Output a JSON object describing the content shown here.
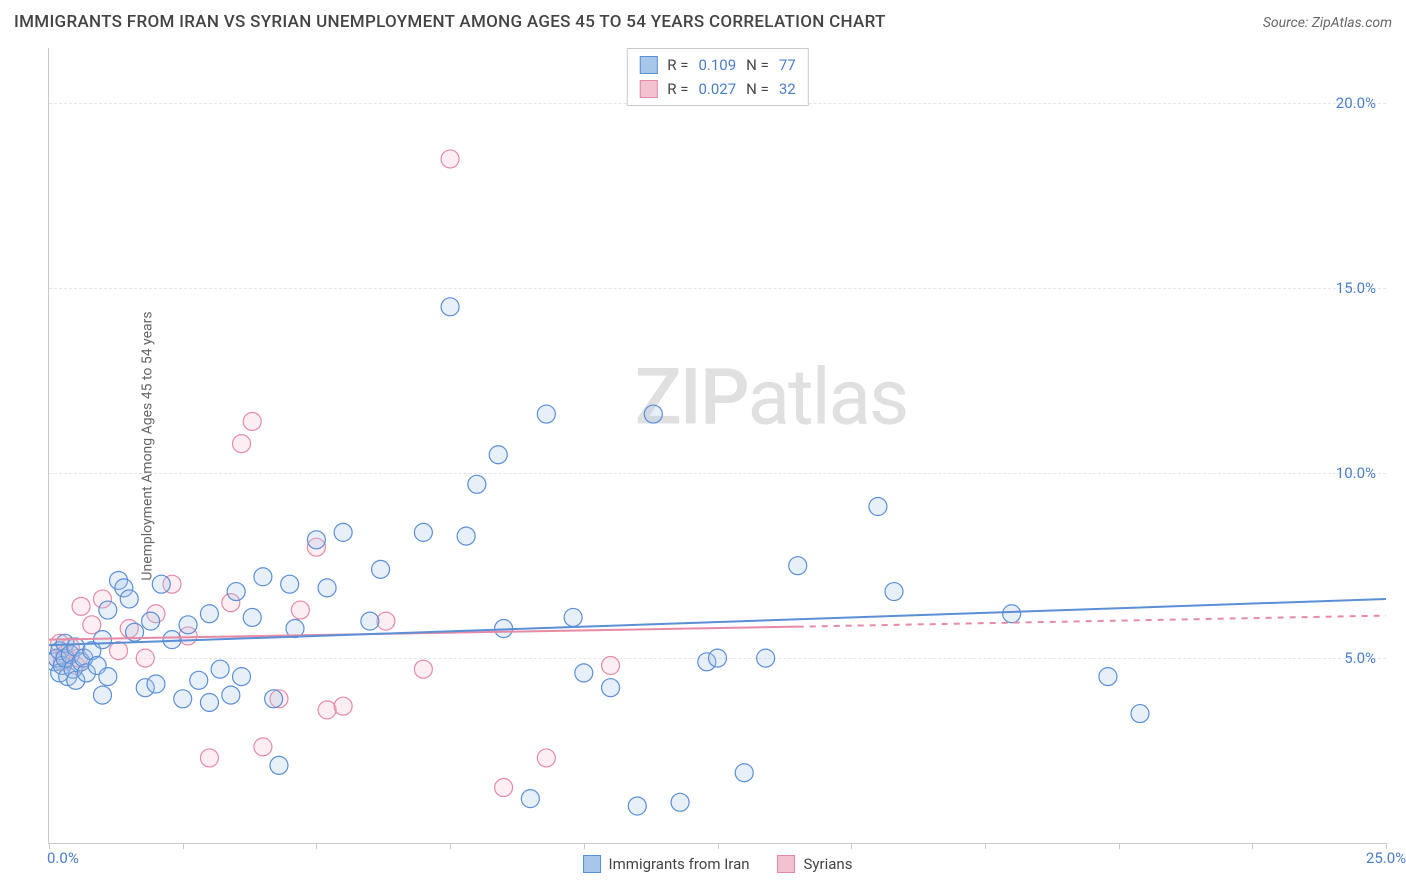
{
  "title": "IMMIGRANTS FROM IRAN VS SYRIAN UNEMPLOYMENT AMONG AGES 45 TO 54 YEARS CORRELATION CHART",
  "source": "Source: ZipAtlas.com",
  "watermark_a": "ZIP",
  "watermark_b": "atlas",
  "chart": {
    "type": "scatter",
    "background_color": "#ffffff",
    "grid_color": "#e6e6e6",
    "axis_color": "#c9c9c9",
    "tick_color": "#4a7ec9",
    "label_color": "#666666",
    "ylabel": "Unemployment Among Ages 45 to 54 years",
    "xlim": [
      0,
      25
    ],
    "ylim": [
      0,
      21.5
    ],
    "x_ticks_major": [
      0,
      5,
      10,
      15,
      20,
      25
    ],
    "x_ticks_minor": [
      2.5,
      7.5,
      12.5,
      17.5,
      22.5
    ],
    "x_tick_labels": {
      "0": "0.0%",
      "25": "25.0%"
    },
    "y_ticks": [
      5,
      10,
      15,
      20
    ],
    "y_tick_labels": {
      "5": "5.0%",
      "10": "10.0%",
      "15": "15.0%",
      "20": "20.0%"
    },
    "marker_radius": 9,
    "marker_stroke_width": 1.2,
    "marker_fill_opacity": 0.28,
    "line_width": 2,
    "series": {
      "iran": {
        "label": "Immigrants from Iran",
        "color_stroke": "#5b8fd6",
        "color_fill": "#a8c6ea",
        "r": "0.109",
        "n": "77",
        "regression": {
          "x0": 0,
          "y0": 5.35,
          "x1": 25,
          "y1": 6.6
        },
        "points": [
          [
            0.1,
            4.9
          ],
          [
            0.15,
            5.0
          ],
          [
            0.2,
            4.6
          ],
          [
            0.2,
            5.2
          ],
          [
            0.25,
            4.8
          ],
          [
            0.3,
            5.0
          ],
          [
            0.3,
            5.4
          ],
          [
            0.35,
            4.5
          ],
          [
            0.4,
            5.1
          ],
          [
            0.45,
            4.7
          ],
          [
            0.5,
            5.3
          ],
          [
            0.5,
            4.4
          ],
          [
            0.6,
            4.9
          ],
          [
            0.65,
            5.0
          ],
          [
            0.7,
            4.6
          ],
          [
            0.8,
            5.2
          ],
          [
            0.9,
            4.8
          ],
          [
            1.0,
            4.0
          ],
          [
            1.0,
            5.5
          ],
          [
            1.1,
            6.3
          ],
          [
            1.1,
            4.5
          ],
          [
            1.3,
            7.1
          ],
          [
            1.4,
            6.9
          ],
          [
            1.5,
            6.6
          ],
          [
            1.6,
            5.7
          ],
          [
            1.8,
            4.2
          ],
          [
            1.9,
            6.0
          ],
          [
            2.0,
            4.3
          ],
          [
            2.1,
            7.0
          ],
          [
            2.3,
            5.5
          ],
          [
            2.5,
            3.9
          ],
          [
            2.6,
            5.9
          ],
          [
            2.8,
            4.4
          ],
          [
            3.0,
            3.8
          ],
          [
            3.0,
            6.2
          ],
          [
            3.2,
            4.7
          ],
          [
            3.4,
            4.0
          ],
          [
            3.5,
            6.8
          ],
          [
            3.6,
            4.5
          ],
          [
            3.8,
            6.1
          ],
          [
            4.0,
            7.2
          ],
          [
            4.2,
            3.9
          ],
          [
            4.3,
            2.1
          ],
          [
            4.5,
            7.0
          ],
          [
            4.6,
            5.8
          ],
          [
            5.0,
            8.2
          ],
          [
            5.2,
            6.9
          ],
          [
            5.5,
            8.4
          ],
          [
            6.0,
            6.0
          ],
          [
            6.2,
            7.4
          ],
          [
            7.0,
            8.4
          ],
          [
            7.5,
            14.5
          ],
          [
            7.8,
            8.3
          ],
          [
            8.0,
            9.7
          ],
          [
            8.4,
            10.5
          ],
          [
            8.5,
            5.8
          ],
          [
            9.0,
            1.2
          ],
          [
            9.3,
            11.6
          ],
          [
            9.8,
            6.1
          ],
          [
            10.0,
            4.6
          ],
          [
            10.5,
            4.2
          ],
          [
            11.0,
            1.0
          ],
          [
            11.3,
            11.6
          ],
          [
            11.8,
            1.1
          ],
          [
            12.3,
            4.9
          ],
          [
            12.5,
            5.0
          ],
          [
            13.0,
            1.9
          ],
          [
            13.4,
            5.0
          ],
          [
            14.0,
            7.5
          ],
          [
            15.5,
            9.1
          ],
          [
            15.8,
            6.8
          ],
          [
            18.0,
            6.2
          ],
          [
            19.8,
            4.5
          ],
          [
            20.4,
            3.5
          ]
        ]
      },
      "syrians": {
        "label": "Syrians",
        "color_stroke": "#e68aa5",
        "color_fill": "#f3c2d0",
        "r": "0.027",
        "n": "32",
        "regression_solid": {
          "x0": 0,
          "y0": 5.5,
          "x1": 14,
          "y1": 5.85
        },
        "regression_dashed": {
          "x0": 14,
          "y0": 5.85,
          "x1": 25,
          "y1": 6.15
        },
        "points": [
          [
            0.15,
            5.0
          ],
          [
            0.2,
            5.4
          ],
          [
            0.25,
            4.9
          ],
          [
            0.3,
            5.1
          ],
          [
            0.4,
            5.3
          ],
          [
            0.5,
            4.8
          ],
          [
            0.55,
            5.0
          ],
          [
            0.6,
            6.4
          ],
          [
            0.8,
            5.9
          ],
          [
            1.0,
            6.6
          ],
          [
            1.3,
            5.2
          ],
          [
            1.5,
            5.8
          ],
          [
            1.8,
            5.0
          ],
          [
            2.0,
            6.2
          ],
          [
            2.3,
            7.0
          ],
          [
            2.6,
            5.6
          ],
          [
            3.0,
            2.3
          ],
          [
            3.4,
            6.5
          ],
          [
            3.6,
            10.8
          ],
          [
            3.8,
            11.4
          ],
          [
            4.0,
            2.6
          ],
          [
            4.3,
            3.9
          ],
          [
            4.7,
            6.3
          ],
          [
            5.0,
            8.0
          ],
          [
            5.2,
            3.6
          ],
          [
            5.5,
            3.7
          ],
          [
            6.3,
            6.0
          ],
          [
            7.0,
            4.7
          ],
          [
            7.5,
            18.5
          ],
          [
            8.5,
            1.5
          ],
          [
            9.3,
            2.3
          ],
          [
            10.5,
            4.8
          ]
        ]
      }
    },
    "legend_top": {
      "r_label": "R  =",
      "n_label": "N  ="
    }
  }
}
